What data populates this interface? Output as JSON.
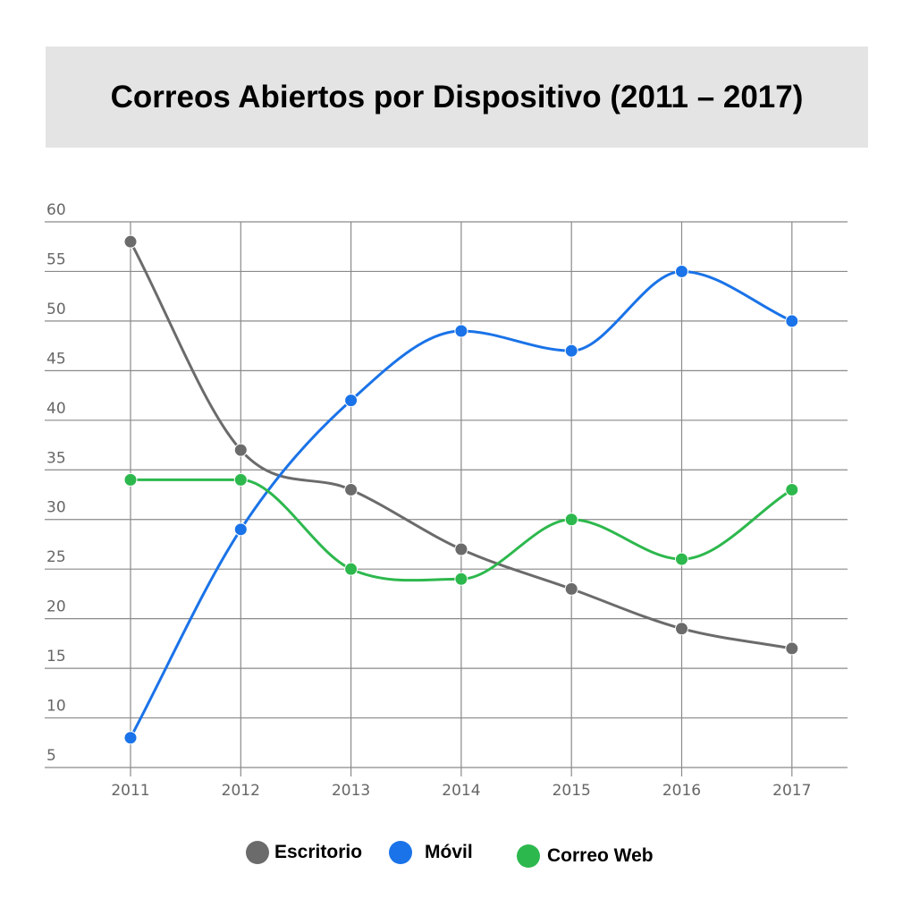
{
  "chart_data": {
    "type": "line",
    "title": "Correos Abiertos por Dispositivo (2011 – 2017)",
    "xlabel": "",
    "ylabel": "",
    "categories": [
      "2011",
      "2012",
      "2013",
      "2014",
      "2015",
      "2016",
      "2017"
    ],
    "y_ticks": [
      "5",
      "10",
      "15",
      "20",
      "25",
      "30",
      "35",
      "40",
      "45",
      "50",
      "55",
      "60"
    ],
    "ylim": [
      5,
      60
    ],
    "grid": true,
    "legend_position": "bottom",
    "series": [
      {
        "name": "Escritorio",
        "color": "#6b6b6b",
        "values": [
          58,
          37,
          33,
          27,
          23,
          19,
          17
        ]
      },
      {
        "name": "Móvil",
        "color": "#1a73e8",
        "values": [
          8,
          29,
          42,
          49,
          47,
          55,
          50
        ]
      },
      {
        "name": "Correo Web",
        "color": "#2db84d",
        "values": [
          34,
          34,
          25,
          24,
          30,
          26,
          33
        ]
      }
    ]
  }
}
